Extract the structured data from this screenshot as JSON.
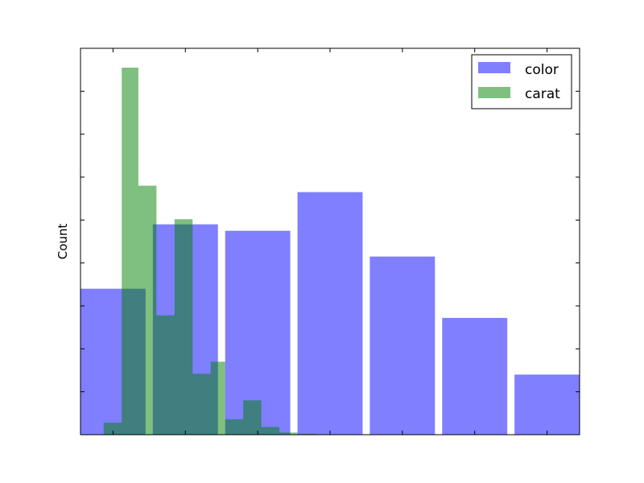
{
  "chart_data": {
    "type": "bar",
    "xlabel": "",
    "ylabel": "Count",
    "xlim": [
      0,
      6.9
    ],
    "ylim": [
      0,
      9
    ],
    "grid": false,
    "show_tick_labels": false,
    "legend": {
      "placement": "top-right"
    },
    "series": [
      {
        "name": "color",
        "color": "#0000ff",
        "opacity": 0.5,
        "bars": [
          {
            "x0": 0.0,
            "x1": 0.9,
            "value": 3.4
          },
          {
            "x0": 1.0,
            "x1": 1.9,
            "value": 4.9
          },
          {
            "x0": 2.0,
            "x1": 2.9,
            "value": 4.75
          },
          {
            "x0": 3.0,
            "x1": 3.9,
            "value": 5.65
          },
          {
            "x0": 4.0,
            "x1": 4.9,
            "value": 4.15
          },
          {
            "x0": 5.0,
            "x1": 5.9,
            "value": 2.72
          },
          {
            "x0": 6.0,
            "x1": 6.9,
            "value": 1.4
          }
        ]
      },
      {
        "name": "carat",
        "color": "#008000",
        "opacity": 0.5,
        "bars": [
          {
            "x0": 0.32,
            "x1": 0.57,
            "value": 0.28
          },
          {
            "x0": 0.57,
            "x1": 0.8,
            "value": 8.55
          },
          {
            "x0": 0.8,
            "x1": 1.05,
            "value": 5.8
          },
          {
            "x0": 1.05,
            "x1": 1.3,
            "value": 2.78
          },
          {
            "x0": 1.3,
            "x1": 1.55,
            "value": 5.02
          },
          {
            "x0": 1.55,
            "x1": 1.8,
            "value": 1.42
          },
          {
            "x0": 1.8,
            "x1": 2.0,
            "value": 1.7
          },
          {
            "x0": 2.0,
            "x1": 2.25,
            "value": 0.36
          },
          {
            "x0": 2.25,
            "x1": 2.5,
            "value": 0.8
          },
          {
            "x0": 2.5,
            "x1": 2.75,
            "value": 0.18
          },
          {
            "x0": 2.75,
            "x1": 3.0,
            "value": 0.05
          },
          {
            "x0": 3.0,
            "x1": 3.25,
            "value": 0.02
          }
        ]
      }
    ]
  }
}
